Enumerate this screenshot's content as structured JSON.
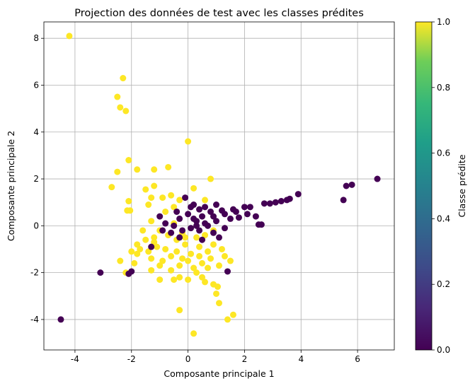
{
  "chart_data": {
    "type": "scatter",
    "title": "Projection des données de test avec les classes prédites",
    "xlabel": "Composante principale 1",
    "ylabel": "Composante principale 2",
    "xlim": [
      -5.1,
      7.3
    ],
    "ylim": [
      -5.3,
      8.7
    ],
    "xticks": [
      -4,
      -2,
      0,
      2,
      4,
      6
    ],
    "yticks": [
      -4,
      -2,
      0,
      2,
      4,
      6,
      8
    ],
    "grid": true,
    "colorbar": {
      "label": "Classe prédite",
      "range": [
        0,
        1
      ],
      "ticks": [
        "0.0",
        "0.2",
        "0.4",
        "0.6",
        "0.8",
        "1.0"
      ],
      "colormap": [
        "#440154",
        "#3b528b",
        "#21918c",
        "#5ec962",
        "#fde725"
      ]
    },
    "class_colors": {
      "0": "#440154",
      "1": "#fde725"
    },
    "series": [
      {
        "class": 1,
        "points": [
          [
            -4.2,
            8.1
          ],
          [
            -2.3,
            6.3
          ],
          [
            -2.5,
            5.5
          ],
          [
            -2.4,
            5.05
          ],
          [
            -2.2,
            4.9
          ],
          [
            0.0,
            3.6
          ],
          [
            -2.1,
            2.8
          ],
          [
            -1.8,
            2.4
          ],
          [
            -2.5,
            2.3
          ],
          [
            -1.2,
            2.4
          ],
          [
            -0.7,
            2.5
          ],
          [
            0.8,
            2.0
          ],
          [
            -2.7,
            1.65
          ],
          [
            -1.5,
            1.55
          ],
          [
            -1.3,
            1.2
          ],
          [
            -1.2,
            1.7
          ],
          [
            -0.6,
            1.3
          ],
          [
            -0.3,
            1.1
          ],
          [
            0.2,
            1.6
          ],
          [
            -2.1,
            1.05
          ],
          [
            -2.15,
            0.65
          ],
          [
            -2.05,
            0.65
          ],
          [
            -1.4,
            0.9
          ],
          [
            -0.8,
            0.6
          ],
          [
            -0.9,
            1.2
          ],
          [
            -0.5,
            0.8
          ],
          [
            0.6,
            1.1
          ],
          [
            -1.3,
            0.2
          ],
          [
            -1.6,
            -0.2
          ],
          [
            -1.2,
            -0.5
          ],
          [
            -1.8,
            -0.8
          ],
          [
            -1.5,
            -0.6
          ],
          [
            -1.1,
            -0.9
          ],
          [
            -2.0,
            -1.1
          ],
          [
            -1.7,
            -1.0
          ],
          [
            -1.3,
            -1.4
          ],
          [
            -1.0,
            -1.7
          ],
          [
            -1.3,
            -1.9
          ],
          [
            -1.9,
            -1.6
          ],
          [
            -2.2,
            -2.0
          ],
          [
            -2.4,
            -1.5
          ],
          [
            -1.8,
            -1.2
          ],
          [
            -1.0,
            -2.3
          ],
          [
            -0.5,
            -2.3
          ],
          [
            -0.3,
            -2.2
          ],
          [
            0.0,
            -2.3
          ],
          [
            0.3,
            -2.0
          ],
          [
            0.6,
            -2.4
          ],
          [
            0.9,
            -2.5
          ],
          [
            1.05,
            -2.6
          ],
          [
            1.0,
            -2.9
          ],
          [
            1.1,
            -3.3
          ],
          [
            1.6,
            -3.8
          ],
          [
            1.4,
            -4.0
          ],
          [
            0.2,
            -4.6
          ],
          [
            -0.3,
            -3.6
          ],
          [
            0.0,
            -1.5
          ],
          [
            0.2,
            -1.8
          ],
          [
            0.5,
            -1.6
          ],
          [
            0.8,
            -1.4
          ],
          [
            1.1,
            -1.7
          ],
          [
            1.3,
            -1.3
          ],
          [
            1.5,
            -1.5
          ],
          [
            1.2,
            -1.0
          ],
          [
            0.9,
            -0.8
          ],
          [
            0.7,
            -1.1
          ],
          [
            0.4,
            -0.9
          ],
          [
            0.1,
            -1.2
          ],
          [
            -0.2,
            -1.4
          ],
          [
            -0.4,
            -1.1
          ],
          [
            -0.6,
            -1.3
          ],
          [
            -0.8,
            -1.0
          ],
          [
            -0.4,
            -0.6
          ],
          [
            -0.1,
            -0.8
          ],
          [
            0.3,
            -0.5
          ],
          [
            0.6,
            -0.4
          ],
          [
            0.9,
            -0.2
          ],
          [
            -0.7,
            -0.4
          ],
          [
            -1.0,
            -0.2
          ],
          [
            -0.5,
            0.1
          ],
          [
            -0.2,
            -0.3
          ],
          [
            0.4,
            -1.3
          ],
          [
            -0.3,
            -1.7
          ],
          [
            -0.6,
            -1.9
          ],
          [
            0.5,
            -2.2
          ],
          [
            -0.9,
            -1.5
          ],
          [
            -1.4,
            -1.1
          ],
          [
            0.7,
            -1.8
          ],
          [
            -0.1,
            -0.5
          ],
          [
            -1.2,
            -0.7
          ]
        ]
      },
      {
        "class": 0,
        "points": [
          [
            -4.5,
            -4.0
          ],
          [
            -3.1,
            -2.0
          ],
          [
            -2.1,
            -2.05
          ],
          [
            -2.0,
            -1.95
          ],
          [
            -0.1,
            1.2
          ],
          [
            0.1,
            0.8
          ],
          [
            0.4,
            0.7
          ],
          [
            0.8,
            0.6
          ],
          [
            1.2,
            0.65
          ],
          [
            1.6,
            0.7
          ],
          [
            2.0,
            0.8
          ],
          [
            2.2,
            0.8
          ],
          [
            0.2,
            0.3
          ],
          [
            0.5,
            0.4
          ],
          [
            0.9,
            0.4
          ],
          [
            1.3,
            0.5
          ],
          [
            1.7,
            0.6
          ],
          [
            1.0,
            0.2
          ],
          [
            0.6,
            0.1
          ],
          [
            0.3,
            0.0
          ],
          [
            -0.3,
            0.3
          ],
          [
            -0.5,
            0.0
          ],
          [
            -0.2,
            -0.2
          ],
          [
            0.1,
            -0.1
          ],
          [
            0.4,
            -0.2
          ],
          [
            0.7,
            0.0
          ],
          [
            1.5,
            0.3
          ],
          [
            2.4,
            0.4
          ],
          [
            2.5,
            0.05
          ],
          [
            2.6,
            0.05
          ],
          [
            2.7,
            0.95
          ],
          [
            2.9,
            0.95
          ],
          [
            3.1,
            1.0
          ],
          [
            3.3,
            1.05
          ],
          [
            3.5,
            1.1
          ],
          [
            3.6,
            1.15
          ],
          [
            3.9,
            1.35
          ],
          [
            5.5,
            1.1
          ],
          [
            5.6,
            1.7
          ],
          [
            5.8,
            1.75
          ],
          [
            6.7,
            2.0
          ],
          [
            -0.8,
            0.1
          ],
          [
            -0.6,
            -0.3
          ],
          [
            -0.3,
            -0.5
          ],
          [
            0.0,
            0.5
          ],
          [
            0.9,
            -0.3
          ],
          [
            1.4,
            -1.95
          ],
          [
            1.3,
            -0.1
          ],
          [
            1.1,
            -0.5
          ],
          [
            -0.4,
            0.6
          ],
          [
            -1.0,
            0.4
          ],
          [
            -0.9,
            -0.2
          ],
          [
            -1.3,
            -0.9
          ],
          [
            0.6,
            0.8
          ],
          [
            0.2,
            0.9
          ],
          [
            1.8,
            0.35
          ],
          [
            2.1,
            0.5
          ],
          [
            1.0,
            0.9
          ],
          [
            0.5,
            -0.6
          ],
          [
            0.3,
            0.2
          ]
        ]
      }
    ]
  }
}
